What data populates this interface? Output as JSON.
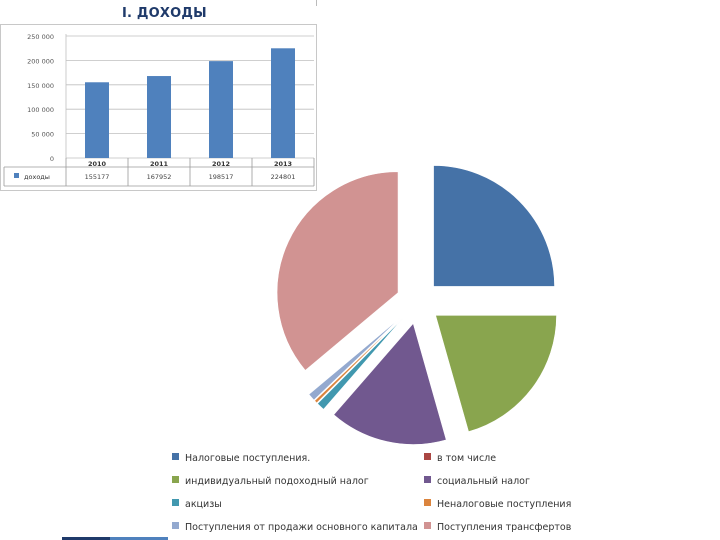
{
  "slide": {
    "title": "I. ДОХОДЫ"
  },
  "chart_data": [
    {
      "type": "bar",
      "categories": [
        "2010",
        "2011",
        "2012",
        "2013"
      ],
      "series": [
        {
          "name": "доходы",
          "values": [
            155177,
            167952,
            198517,
            224801
          ],
          "color": "#4f81bd"
        }
      ],
      "ylim": [
        0,
        250000
      ],
      "yticks": [
        "0",
        "50 000",
        "100 000",
        "150 000",
        "200 000",
        "250 000"
      ],
      "grid": true,
      "table_values": [
        "155177",
        "167952",
        "198517",
        "224801"
      ]
    },
    {
      "type": "pie",
      "series": [
        {
          "name": "Налоговые поступления.",
          "value": 25.0,
          "color": "#4572a7"
        },
        {
          "name": "в том числе",
          "value": 0.0,
          "color": "#aa4643"
        },
        {
          "name": "индивидуальный подоходный налог",
          "value": 20.6,
          "color": "#89a54e"
        },
        {
          "name": "социальный налог",
          "value": 15.8,
          "color": "#71588f"
        },
        {
          "name": "акцизы",
          "value": 1.1,
          "color": "#4198af"
        },
        {
          "name": "Неналоговые поступления",
          "value": 0.4,
          "color": "#db843d"
        },
        {
          "name": "Поступления от продажи основного капитала",
          "value": 1.0,
          "color": "#93a9cf"
        },
        {
          "name": "Поступления трансфертов",
          "value": 36.1,
          "color": "#d19392"
        }
      ],
      "legend": "bottom"
    }
  ]
}
